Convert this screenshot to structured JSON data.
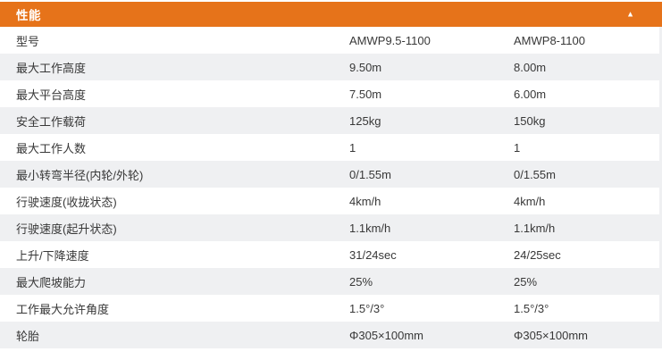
{
  "panel": {
    "title": "性能",
    "collapse_icon": "▲"
  },
  "colors": {
    "accent_orange": "#E6731A",
    "alt_row": "#EFF0F2",
    "text": "#383838",
    "header_text": "#FFFFFF"
  },
  "table": {
    "columns": [
      "spec-label",
      "model-1-value",
      "model-2-value"
    ],
    "rows": [
      {
        "label": "型号",
        "col1": "AMWP9.5-1100",
        "col2": "AMWP8-1100"
      },
      {
        "label": "最大工作高度",
        "col1": "9.50m",
        "col2": "8.00m"
      },
      {
        "label": "最大平台高度",
        "col1": "7.50m",
        "col2": "6.00m"
      },
      {
        "label": "安全工作载荷",
        "col1": "125kg",
        "col2": "150kg"
      },
      {
        "label": "最大工作人数",
        "col1": "1",
        "col2": "1"
      },
      {
        "label": "最小转弯半径(内轮/外轮)",
        "col1": "0/1.55m",
        "col2": "0/1.55m"
      },
      {
        "label": "行驶速度(收拢状态)",
        "col1": "4km/h",
        "col2": "4km/h"
      },
      {
        "label": "行驶速度(起升状态)",
        "col1": "1.1km/h",
        "col2": "1.1km/h"
      },
      {
        "label": "上升/下降速度",
        "col1": "31/24sec",
        "col2": "24/25sec"
      },
      {
        "label": "最大爬坡能力",
        "col1": "25%",
        "col2": "25%"
      },
      {
        "label": "工作最大允许角度",
        "col1": "1.5°/3°",
        "col2": "1.5°/3°"
      },
      {
        "label": "轮胎",
        "col1": "Φ305×100mm",
        "col2": "Φ305×100mm"
      }
    ]
  }
}
